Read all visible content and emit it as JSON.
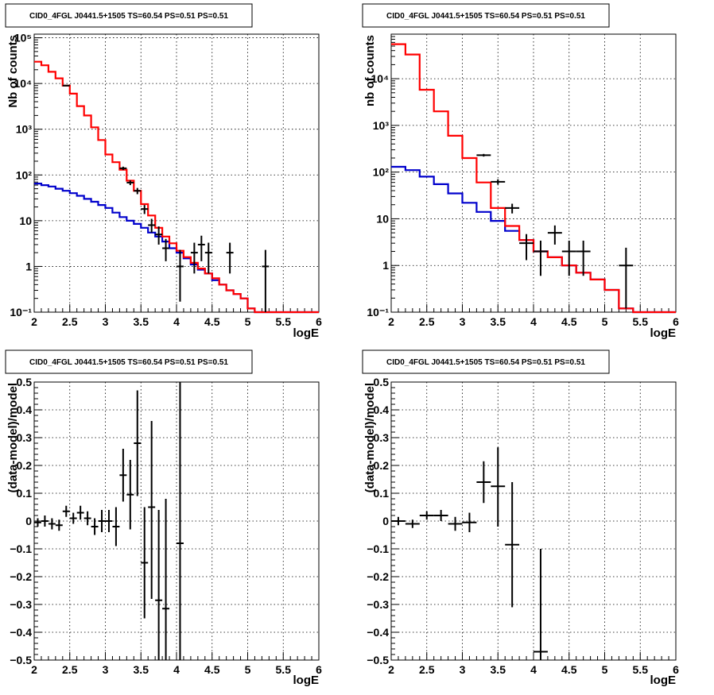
{
  "colors": {
    "model_total": "#ff0000",
    "model_bkg": "#0000cc",
    "data": "#000000"
  },
  "chart_data": [
    {
      "type": "step-histogram",
      "title": "CID0_4FGL J0441.5+1505 TS=60.54 PS=0.51 PS=0.51",
      "xlabel": "logE",
      "ylabel": "Nb of counts",
      "log_y": true,
      "grid": true,
      "xlim": [
        2,
        6
      ],
      "ylim": [
        0.1,
        120000
      ],
      "x_ticks": [
        2,
        2.5,
        3,
        3.5,
        4,
        4.5,
        5,
        5.5,
        6
      ],
      "x_tick_labels": [
        "2",
        "2.5",
        "3",
        "3.5",
        "4",
        "4.5",
        "5",
        "5.5",
        "6"
      ],
      "y_ticks": [
        0.1,
        1,
        10,
        100,
        1000,
        10000,
        100000
      ],
      "y_tick_labels": [
        "10⁻¹",
        "1",
        "10",
        "10²",
        "10³",
        "10⁴",
        "10⁵"
      ],
      "bin_edges": [
        2.0,
        2.1,
        2.2,
        2.3,
        2.4,
        2.5,
        2.6,
        2.7,
        2.8,
        2.9,
        3.0,
        3.1,
        3.2,
        3.3,
        3.4,
        3.5,
        3.6,
        3.7,
        3.8,
        3.9,
        4.0,
        4.1,
        4.2,
        4.3,
        4.4,
        4.5,
        4.6,
        4.7,
        4.8,
        4.9,
        5.0,
        5.1,
        5.2,
        5.3,
        5.4,
        5.5,
        5.6,
        5.7,
        5.8,
        5.9,
        6.0
      ],
      "series": [
        {
          "values": [
            30000,
            25000,
            18000,
            13000,
            9000,
            6000,
            3200,
            2000,
            1100,
            580,
            280,
            190,
            130,
            75,
            45,
            23,
            13,
            7,
            4.5,
            3.2,
            2.2,
            1.6,
            1.2,
            0.9,
            0.7,
            0.55,
            0.4,
            0.3,
            0.25,
            0.2,
            0.12,
            0.1,
            0.1,
            0.1,
            0.1,
            0.1,
            0.1,
            0.1,
            0.1,
            0.1
          ]
        },
        {
          "values": [
            65,
            60,
            56,
            50,
            45,
            40,
            35,
            30,
            26,
            22,
            19,
            15,
            12,
            10,
            8.5,
            7,
            5.5,
            4.5,
            3.5,
            2.5,
            2,
            1.5,
            1.1,
            0.85,
            0.7,
            0.5,
            0.4,
            0.3,
            0.25,
            0.2,
            0.12,
            0.1,
            0.1,
            0.1,
            0.1,
            0.1,
            0.1,
            0.1,
            0.1,
            0.1
          ]
        }
      ],
      "points": [
        {
          "x": 2.45,
          "y": 9000,
          "xerr": 0.05,
          "ylo": 8800,
          "yhi": 9200
        },
        {
          "x": 3.25,
          "y": 140,
          "xerr": 0.05,
          "ylo": 128,
          "yhi": 152
        },
        {
          "x": 3.35,
          "y": 68,
          "xerr": 0.05,
          "ylo": 60,
          "yhi": 76
        },
        {
          "x": 3.45,
          "y": 45,
          "xerr": 0.05,
          "ylo": 38,
          "yhi": 52
        },
        {
          "x": 3.55,
          "y": 18,
          "xerr": 0.05,
          "ylo": 14,
          "yhi": 22
        },
        {
          "x": 3.65,
          "y": 8,
          "xerr": 0.05,
          "ylo": 5.5,
          "yhi": 11
        },
        {
          "x": 3.75,
          "y": 5,
          "xerr": 0.05,
          "ylo": 3,
          "yhi": 7.5
        },
        {
          "x": 3.85,
          "y": 2.5,
          "xerr": 0.05,
          "ylo": 1.3,
          "yhi": 4
        },
        {
          "x": 4.05,
          "y": 1,
          "xerr": 0.05,
          "ylo": 0.17,
          "yhi": 2.3
        },
        {
          "x": 4.25,
          "y": 2,
          "xerr": 0.05,
          "ylo": 0.7,
          "yhi": 3.3
        },
        {
          "x": 4.35,
          "y": 3,
          "xerr": 0.05,
          "ylo": 1.3,
          "yhi": 4.7
        },
        {
          "x": 4.45,
          "y": 2,
          "xerr": 0.05,
          "ylo": 0.7,
          "yhi": 3.3
        },
        {
          "x": 4.75,
          "y": 2,
          "xerr": 0.05,
          "ylo": 0.7,
          "yhi": 3.3
        },
        {
          "x": 5.25,
          "y": 1,
          "xerr": 0.05,
          "ylo": 0.1,
          "yhi": 2.3
        }
      ]
    },
    {
      "type": "step-histogram",
      "title": "CID0_4FGL J0441.5+1505 TS=60.54 PS=0.51 PS=0.51",
      "xlabel": "logE",
      "ylabel": "nb of counts",
      "log_y": true,
      "grid": true,
      "xlim": [
        2,
        6
      ],
      "ylim": [
        0.1,
        90000
      ],
      "x_ticks": [
        2,
        2.5,
        3,
        3.5,
        4,
        4.5,
        5,
        5.5,
        6
      ],
      "x_tick_labels": [
        "2",
        "2.5",
        "3",
        "3.5",
        "4",
        "4.5",
        "5",
        "5.5",
        "6"
      ],
      "y_ticks": [
        0.1,
        1,
        10,
        100,
        1000,
        10000
      ],
      "y_tick_labels": [
        "10⁻¹",
        "1",
        "10",
        "10²",
        "10³",
        "10⁴"
      ],
      "bin_edges": [
        2.0,
        2.2,
        2.4,
        2.6,
        2.8,
        3.0,
        3.2,
        3.4,
        3.6,
        3.8,
        4.0,
        4.2,
        4.4,
        4.6,
        4.8,
        5.0,
        5.2,
        5.4,
        5.6,
        5.8,
        6.0
      ],
      "series": [
        {
          "values": [
            55000,
            33000,
            5800,
            2000,
            600,
            200,
            60,
            17,
            7,
            3.5,
            2,
            1.5,
            1,
            0.7,
            0.5,
            0.3,
            0.12,
            0.1,
            0.1,
            0.1
          ]
        },
        {
          "values": [
            130,
            110,
            80,
            55,
            35,
            22,
            14,
            9,
            5.5,
            3.5,
            2,
            1.5,
            1,
            0.7,
            0.5,
            0.3,
            0.12,
            0.1,
            0.1,
            0.1
          ]
        }
      ],
      "points": [
        {
          "x": 3.3,
          "y": 230,
          "xerr": 0.1,
          "ylo": 215,
          "yhi": 245
        },
        {
          "x": 3.5,
          "y": 62,
          "xerr": 0.1,
          "ylo": 54,
          "yhi": 70
        },
        {
          "x": 3.7,
          "y": 17,
          "xerr": 0.1,
          "ylo": 13,
          "yhi": 21
        },
        {
          "x": 3.9,
          "y": 3,
          "xerr": 0.1,
          "ylo": 1.3,
          "yhi": 4.7
        },
        {
          "x": 4.1,
          "y": 2,
          "xerr": 0.1,
          "ylo": 0.6,
          "yhi": 3.4
        },
        {
          "x": 4.3,
          "y": 5,
          "xerr": 0.1,
          "ylo": 2.8,
          "yhi": 7.2
        },
        {
          "x": 4.5,
          "y": 2,
          "xerr": 0.1,
          "ylo": 0.6,
          "yhi": 3.4
        },
        {
          "x": 4.7,
          "y": 2,
          "xerr": 0.1,
          "ylo": 0.6,
          "yhi": 3.4
        },
        {
          "x": 5.3,
          "y": 1,
          "xerr": 0.1,
          "ylo": 0.12,
          "yhi": 2.4
        }
      ]
    },
    {
      "type": "scatter",
      "title": "CID0_4FGL J0441.5+1505 TS=60.54 PS=0.51 PS=0.51",
      "xlabel": "logE",
      "ylabel": "(data-model)/model",
      "log_y": false,
      "grid": true,
      "xlim": [
        2,
        6
      ],
      "ylim": [
        -0.5,
        0.5
      ],
      "x_ticks": [
        2,
        2.5,
        3,
        3.5,
        4,
        4.5,
        5,
        5.5,
        6
      ],
      "x_tick_labels": [
        "2",
        "2.5",
        "3",
        "3.5",
        "4",
        "4.5",
        "5",
        "5.5",
        "6"
      ],
      "y_ticks": [
        -0.5,
        -0.4,
        -0.3,
        -0.2,
        -0.1,
        0,
        0.1,
        0.2,
        0.3,
        0.4,
        0.5
      ],
      "y_tick_labels": [
        "−0.5",
        "−0.4",
        "−0.3",
        "−0.2",
        "−0.1",
        "0",
        "0.1",
        "0.2",
        "0.3",
        "0.4",
        "0.5"
      ],
      "points": [
        {
          "x": 2.05,
          "y": -0.005,
          "xerr": 0.05,
          "ylo": -0.02,
          "yhi": 0.01
        },
        {
          "x": 2.15,
          "y": 0.0,
          "xerr": 0.05,
          "ylo": -0.02,
          "yhi": 0.02
        },
        {
          "x": 2.25,
          "y": -0.01,
          "xerr": 0.05,
          "ylo": -0.03,
          "yhi": 0.01
        },
        {
          "x": 2.35,
          "y": -0.015,
          "xerr": 0.05,
          "ylo": -0.035,
          "yhi": 0.005
        },
        {
          "x": 2.45,
          "y": 0.035,
          "xerr": 0.05,
          "ylo": 0.015,
          "yhi": 0.055
        },
        {
          "x": 2.55,
          "y": 0.01,
          "xerr": 0.05,
          "ylo": -0.01,
          "yhi": 0.03
        },
        {
          "x": 2.65,
          "y": 0.03,
          "xerr": 0.05,
          "ylo": 0.005,
          "yhi": 0.055
        },
        {
          "x": 2.75,
          "y": 0.01,
          "xerr": 0.05,
          "ylo": -0.015,
          "yhi": 0.035
        },
        {
          "x": 2.85,
          "y": -0.02,
          "xerr": 0.05,
          "ylo": -0.05,
          "yhi": 0.01
        },
        {
          "x": 2.95,
          "y": 0.0,
          "xerr": 0.05,
          "ylo": -0.04,
          "yhi": 0.04
        },
        {
          "x": 3.05,
          "y": 0.0,
          "xerr": 0.05,
          "ylo": -0.04,
          "yhi": 0.04
        },
        {
          "x": 3.15,
          "y": -0.02,
          "xerr": 0.05,
          "ylo": -0.09,
          "yhi": 0.05
        },
        {
          "x": 3.25,
          "y": 0.165,
          "xerr": 0.05,
          "ylo": 0.07,
          "yhi": 0.26
        },
        {
          "x": 3.35,
          "y": 0.095,
          "xerr": 0.05,
          "ylo": -0.03,
          "yhi": 0.22
        },
        {
          "x": 3.45,
          "y": 0.28,
          "xerr": 0.05,
          "ylo": 0.09,
          "yhi": 0.47
        },
        {
          "x": 3.55,
          "y": -0.15,
          "xerr": 0.05,
          "ylo": -0.35,
          "yhi": 0.05
        },
        {
          "x": 3.65,
          "y": 0.05,
          "xerr": 0.05,
          "ylo": -0.28,
          "yhi": 0.36
        },
        {
          "x": 3.75,
          "y": -0.285,
          "xerr": 0.05,
          "ylo": -0.5,
          "yhi": 0.04
        },
        {
          "x": 3.85,
          "y": -0.315,
          "xerr": 0.05,
          "ylo": -0.5,
          "yhi": 0.08
        },
        {
          "x": 4.05,
          "y": -0.08,
          "xerr": 0.05,
          "ylo": -0.5,
          "yhi": 0.5
        }
      ]
    },
    {
      "type": "scatter",
      "title": "CID0_4FGL J0441.5+1505 TS=60.54 PS=0.51 PS=0.51",
      "xlabel": "logE",
      "ylabel": "(data-model)/model",
      "log_y": false,
      "grid": true,
      "xlim": [
        2,
        6
      ],
      "ylim": [
        -0.5,
        0.5
      ],
      "x_ticks": [
        2,
        2.5,
        3,
        3.5,
        4,
        4.5,
        5,
        5.5,
        6
      ],
      "x_tick_labels": [
        "2",
        "2.5",
        "3",
        "3.5",
        "4",
        "4.5",
        "5",
        "5.5",
        "6"
      ],
      "y_ticks": [
        -0.5,
        -0.4,
        -0.3,
        -0.2,
        -0.1,
        0,
        0.1,
        0.2,
        0.3,
        0.4,
        0.5
      ],
      "y_tick_labels": [
        "−0.5",
        "−0.4",
        "−0.3",
        "−0.2",
        "−0.1",
        "0",
        "0.1",
        "0.2",
        "0.3",
        "0.4",
        "0.5"
      ],
      "points": [
        {
          "x": 2.1,
          "y": 0.0,
          "xerr": 0.1,
          "ylo": -0.015,
          "yhi": 0.015
        },
        {
          "x": 2.3,
          "y": -0.01,
          "xerr": 0.1,
          "ylo": -0.025,
          "yhi": 0.005
        },
        {
          "x": 2.5,
          "y": 0.02,
          "xerr": 0.1,
          "ylo": 0.005,
          "yhi": 0.035
        },
        {
          "x": 2.7,
          "y": 0.02,
          "xerr": 0.1,
          "ylo": 0.0,
          "yhi": 0.04
        },
        {
          "x": 2.9,
          "y": -0.01,
          "xerr": 0.1,
          "ylo": -0.035,
          "yhi": 0.015
        },
        {
          "x": 3.1,
          "y": -0.005,
          "xerr": 0.1,
          "ylo": -0.04,
          "yhi": 0.03
        },
        {
          "x": 3.3,
          "y": 0.14,
          "xerr": 0.1,
          "ylo": 0.065,
          "yhi": 0.215
        },
        {
          "x": 3.5,
          "y": 0.125,
          "xerr": 0.1,
          "ylo": -0.02,
          "yhi": 0.265
        },
        {
          "x": 3.7,
          "y": -0.085,
          "xerr": 0.1,
          "ylo": -0.31,
          "yhi": 0.14
        },
        {
          "x": 4.1,
          "y": -0.47,
          "xerr": 0.1,
          "ylo": -0.5,
          "yhi": -0.1
        }
      ]
    }
  ]
}
